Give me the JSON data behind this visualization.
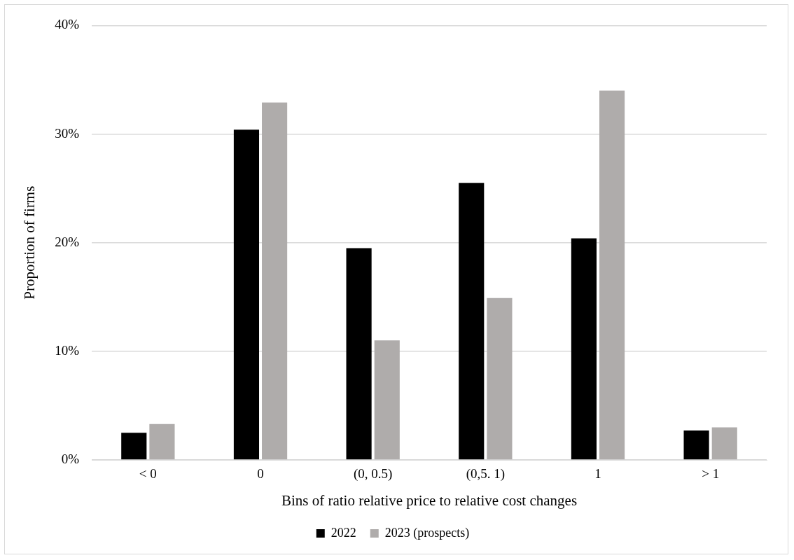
{
  "chart_data": {
    "type": "bar",
    "xlabel": "Bins of ratio relative price to relative cost changes",
    "ylabel": "Proportion of firms",
    "categories": [
      "< 0",
      "0",
      "(0, 0.5)",
      "(0,5. 1)",
      "1",
      "> 1"
    ],
    "series": [
      {
        "name": "2022",
        "color": "#000000",
        "values": [
          2.5,
          30.4,
          19.5,
          25.5,
          20.4,
          2.7
        ]
      },
      {
        "name": "2023 (prospects)",
        "color": "#afacab",
        "values": [
          3.3,
          32.9,
          11.0,
          14.9,
          34.0,
          3.0
        ]
      }
    ],
    "ylim": [
      0,
      40
    ],
    "yticks": [
      {
        "value": 0,
        "label": "0%"
      },
      {
        "value": 10,
        "label": "10%"
      },
      {
        "value": 20,
        "label": "20%"
      },
      {
        "value": 30,
        "label": "30%"
      },
      {
        "value": 40,
        "label": "40%"
      }
    ],
    "grid": "y",
    "legend": "bottom"
  }
}
